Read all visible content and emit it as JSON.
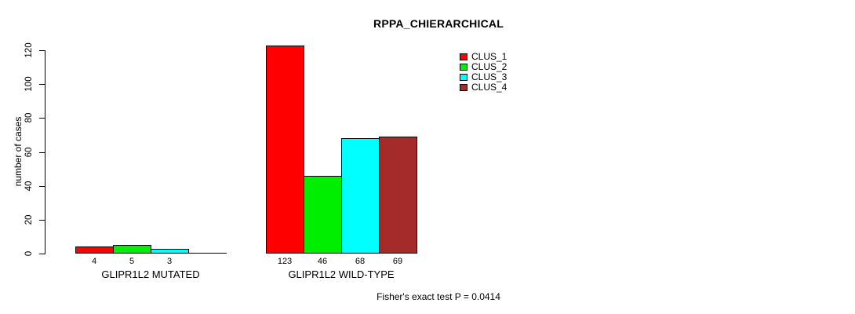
{
  "title": "RPPA_CHIERARCHICAL",
  "footer": "Fisher's exact test P = 0.0414",
  "y_axis": {
    "label": "number of cases",
    "ticks": [
      0,
      20,
      40,
      60,
      80,
      100,
      120
    ]
  },
  "legend": {
    "items": [
      {
        "label": "CLUS_1",
        "color": "#FF0000"
      },
      {
        "label": "CLUS_2",
        "color": "#00EE00"
      },
      {
        "label": "CLUS_3",
        "color": "#00FFFF"
      },
      {
        "label": "CLUS_4",
        "color": "#A52A2A"
      }
    ]
  },
  "chart_data": {
    "type": "bar",
    "title": "RPPA_CHIERARCHICAL",
    "xlabel": "",
    "ylabel": "number of cases",
    "ylim": [
      0,
      120
    ],
    "yticks": [
      0,
      20,
      40,
      60,
      80,
      100,
      120
    ],
    "grid": false,
    "legend_position": "top-right",
    "categories": [
      "GLIPR1L2 MUTATED",
      "GLIPR1L2 WILD-TYPE"
    ],
    "series": [
      {
        "name": "CLUS_1",
        "color": "#FF0000",
        "values": [
          4,
          123
        ]
      },
      {
        "name": "CLUS_2",
        "color": "#00EE00",
        "values": [
          5,
          46
        ]
      },
      {
        "name": "CLUS_3",
        "color": "#00FFFF",
        "values": [
          3,
          68
        ]
      },
      {
        "name": "CLUS_4",
        "color": "#A52A2A",
        "values": [
          0,
          69
        ]
      }
    ],
    "bar_labels": [
      [
        "4",
        "5",
        "3",
        ""
      ],
      [
        "123",
        "46",
        "68",
        "69"
      ]
    ],
    "annotation": "Fisher's exact test P = 0.0414"
  }
}
